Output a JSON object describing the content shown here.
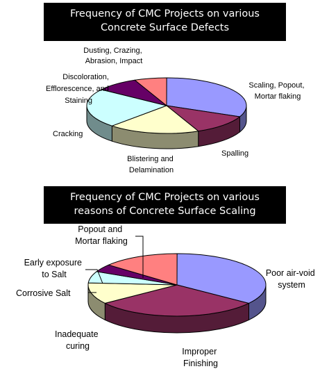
{
  "chart_data": [
    {
      "type": "pie",
      "title": [
        "Frequency of CMC Projects on various",
        "Concrete Surface Defects"
      ],
      "slices": [
        {
          "label": "Scaling, Popout, Mortar flaking",
          "value": 29,
          "color": "#9999ff"
        },
        {
          "label": "Spalling",
          "value": 11,
          "color": "#993366"
        },
        {
          "label": "Blistering and Delamination",
          "value": 17,
          "color": "#ffffcc"
        },
        {
          "label": "Cracking",
          "value": 21,
          "color": "#ccffff"
        },
        {
          "label": "Discoloration, Efflorescence, and Staining",
          "value": 8,
          "color": "#660066"
        },
        {
          "label": "Dusting, Crazing, Abrasion, Impact",
          "value": 6,
          "color": "#ff8080"
        }
      ]
    },
    {
      "type": "pie",
      "title": [
        "Frequency of CMC Projects on various",
        "reasons of Concrete Surface Scaling"
      ],
      "slices": [
        {
          "label": "Poor air-void system",
          "value": 35,
          "color": "#9999ff"
        },
        {
          "label": "Improper Finishing",
          "value": 30,
          "color": "#993366"
        },
        {
          "label": "Inadequate curing",
          "value": 11,
          "color": "#ffffcc"
        },
        {
          "label": "Corrosive Salt",
          "value": 6,
          "color": "#ccffff"
        },
        {
          "label": "Early exposure to Salt",
          "value": 4,
          "color": "#660066"
        },
        {
          "label": "Popout and Mortar flaking",
          "value": 14,
          "color": "#ff8080"
        }
      ]
    }
  ],
  "labels1": [
    [
      "Dusting, Crazing,",
      "Abrasion, Impact"
    ],
    [
      "Discoloration,",
      "Efflorescence, and",
      "Staining"
    ],
    [
      "Scaling, Popout,",
      "Mortar flaking"
    ],
    [
      "Cracking"
    ],
    [
      "Spalling"
    ],
    [
      "Blistering and",
      "Delamination"
    ]
  ],
  "labels2": [
    [
      "Popout and",
      "Mortar flaking"
    ],
    [
      "Early exposure",
      "to Salt"
    ],
    [
      "Poor air-void",
      "system"
    ],
    [
      "Corrosive Salt"
    ],
    [
      "Inadequate",
      "curing"
    ],
    [
      "Improper",
      "Finishing"
    ]
  ]
}
